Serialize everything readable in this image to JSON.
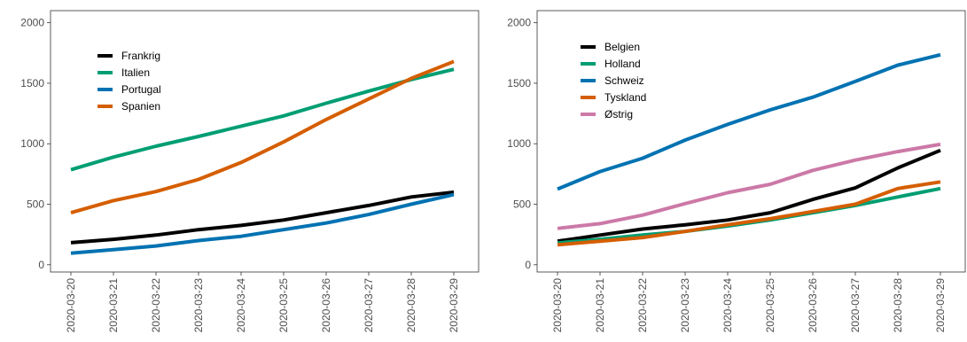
{
  "chart_data": [
    {
      "type": "line",
      "title": "",
      "xlabel": "",
      "ylabel": "",
      "ylim": [
        -60,
        2100
      ],
      "yticks": [
        0,
        500,
        1000,
        1500,
        2000
      ],
      "grid": false,
      "legend_position": "top-left",
      "x": [
        "2020-03-20",
        "2020-03-21",
        "2020-03-22",
        "2020-03-23",
        "2020-03-24",
        "2020-03-25",
        "2020-03-26",
        "2020-03-27",
        "2020-03-28",
        "2020-03-29"
      ],
      "series": [
        {
          "name": "Frankrig",
          "color": "#000000",
          "values": [
            182,
            210,
            245,
            290,
            325,
            370,
            430,
            490,
            560,
            600
          ]
        },
        {
          "name": "Italien",
          "color": "#009E73",
          "values": [
            785,
            890,
            980,
            1060,
            1145,
            1230,
            1335,
            1435,
            1530,
            1615
          ]
        },
        {
          "name": "Portugal",
          "color": "#0072B2",
          "values": [
            95,
            125,
            155,
            200,
            235,
            290,
            345,
            415,
            500,
            580
          ]
        },
        {
          "name": "Spanien",
          "color": "#D55E00",
          "values": [
            430,
            530,
            605,
            705,
            845,
            1015,
            1200,
            1370,
            1540,
            1680
          ]
        }
      ]
    },
    {
      "type": "line",
      "title": "",
      "xlabel": "",
      "ylabel": "",
      "ylim": [
        -60,
        2100
      ],
      "yticks": [
        0,
        500,
        1000,
        1500,
        2000
      ],
      "grid": false,
      "legend_position": "top-left",
      "x": [
        "2020-03-20",
        "2020-03-21",
        "2020-03-22",
        "2020-03-23",
        "2020-03-24",
        "2020-03-25",
        "2020-03-26",
        "2020-03-27",
        "2020-03-28",
        "2020-03-29"
      ],
      "series": [
        {
          "name": "Belgien",
          "color": "#000000",
          "values": [
            195,
            245,
            295,
            330,
            370,
            430,
            540,
            635,
            800,
            945
          ]
        },
        {
          "name": "Holland",
          "color": "#009E73",
          "values": [
            180,
            210,
            245,
            275,
            320,
            370,
            430,
            490,
            560,
            630
          ]
        },
        {
          "name": "Schweiz",
          "color": "#0072B2",
          "values": [
            625,
            770,
            880,
            1030,
            1160,
            1280,
            1385,
            1515,
            1650,
            1735
          ]
        },
        {
          "name": "Tyskland",
          "color": "#D55E00",
          "values": [
            165,
            195,
            225,
            275,
            330,
            380,
            440,
            500,
            630,
            685
          ]
        },
        {
          "name": "Østrig",
          "color": "#CC79A7",
          "values": [
            300,
            340,
            410,
            505,
            595,
            665,
            780,
            865,
            935,
            995
          ]
        }
      ]
    }
  ]
}
